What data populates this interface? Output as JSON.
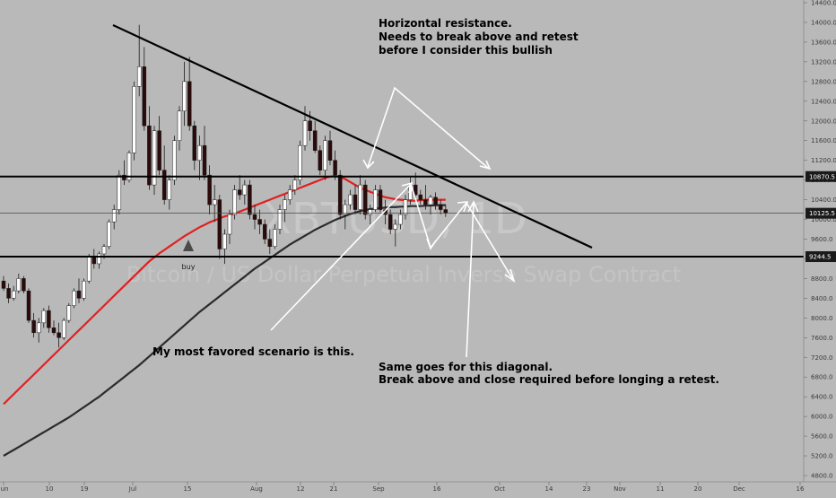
{
  "chart_data": {
    "type": "line",
    "title": "",
    "watermark": {
      "symbol": "XBTUSD, 1D",
      "description": "Bitcoin / US Dollar Perpetual Inverse Swap Contract"
    },
    "timeframe": "1D",
    "y_axis": {
      "ylim": [
        4800,
        14400
      ],
      "ticks": [
        4800,
        5200,
        5600,
        6000,
        6400,
        6800,
        7200,
        7600,
        8000,
        8400,
        8800,
        9200,
        9600,
        10000,
        10400,
        10800,
        11200,
        11600,
        12000,
        12400,
        12800,
        13200,
        13600,
        14000,
        14400
      ],
      "tick_labels": [
        "4800.0",
        "5200.0",
        "5600.0",
        "6000.0",
        "6400.0",
        "6800.0",
        "7200.0",
        "7600.0",
        "8000.0",
        "8400.0",
        "8800.0",
        "9200.0",
        "9600.0",
        "10000.0",
        "10400.0",
        "10800.0",
        "11200.0",
        "11600.0",
        "12000.0",
        "12400.0",
        "12800.0",
        "13200.0",
        "13600.0",
        "14000.0",
        "14400.0"
      ]
    },
    "x_axis": {
      "tick_labels": [
        "Jun",
        "10",
        "19",
        "Jul",
        "15",
        "Aug",
        "12",
        "21",
        "Sep",
        "16",
        "Oct",
        "14",
        "23",
        "Nov",
        "11",
        "20",
        "Dec",
        "16"
      ]
    },
    "price_labels": [
      {
        "value": 10870.5,
        "label": "10870.5",
        "style": "dark"
      },
      {
        "value": 10125.5,
        "label": "10125.5",
        "style": "dark"
      },
      {
        "value": 9244.5,
        "label": "9244.5",
        "style": "dark"
      }
    ],
    "horizontal_lines": [
      10870.5,
      9244.5
    ],
    "last_price": 10125.5,
    "trendline": {
      "from": {
        "date": "Jun 26",
        "price": 13950
      },
      "to": {
        "date": "Oct 30",
        "price": 9450
      }
    },
    "candles": [
      [
        8750,
        8850,
        8550,
        8600
      ],
      [
        8600,
        8700,
        8300,
        8400
      ],
      [
        8400,
        8650,
        8350,
        8550
      ],
      [
        8550,
        8900,
        8500,
        8800
      ],
      [
        8800,
        8850,
        8500,
        8550
      ],
      [
        8550,
        8600,
        7900,
        7950
      ],
      [
        7950,
        8100,
        7600,
        7700
      ],
      [
        7700,
        8000,
        7500,
        7900
      ],
      [
        7900,
        8200,
        7800,
        8150
      ],
      [
        8150,
        8250,
        7700,
        7800
      ],
      [
        7800,
        7950,
        7650,
        7700
      ],
      [
        7700,
        7900,
        7400,
        7600
      ],
      [
        7600,
        8000,
        7550,
        7950
      ],
      [
        7950,
        8300,
        7900,
        8250
      ],
      [
        8250,
        8600,
        8200,
        8550
      ],
      [
        8550,
        8800,
        8300,
        8400
      ],
      [
        8400,
        8800,
        8350,
        8750
      ],
      [
        8750,
        9300,
        8700,
        9250
      ],
      [
        9250,
        9400,
        9000,
        9100
      ],
      [
        9100,
        9350,
        9000,
        9300
      ],
      [
        9300,
        9500,
        9200,
        9450
      ],
      [
        9450,
        10000,
        9400,
        9950
      ],
      [
        9950,
        10300,
        9800,
        10200
      ],
      [
        10200,
        11000,
        10100,
        10900
      ],
      [
        10900,
        11200,
        10700,
        10800
      ],
      [
        10800,
        11400,
        10750,
        11350
      ],
      [
        11350,
        12800,
        11200,
        12700
      ],
      [
        12700,
        13950,
        12500,
        13100
      ],
      [
        13100,
        13500,
        11800,
        11900
      ],
      [
        11900,
        12300,
        10600,
        10700
      ],
      [
        10700,
        11900,
        10500,
        11800
      ],
      [
        11800,
        12100,
        10900,
        11000
      ],
      [
        11000,
        11500,
        10300,
        10400
      ],
      [
        10400,
        10900,
        10200,
        10800
      ],
      [
        10800,
        11700,
        10700,
        11600
      ],
      [
        11600,
        12300,
        11400,
        12200
      ],
      [
        12200,
        13200,
        11900,
        12800
      ],
      [
        12800,
        13300,
        11800,
        11900
      ],
      [
        11900,
        12000,
        11000,
        11200
      ],
      [
        11200,
        11700,
        10800,
        11500
      ],
      [
        11500,
        11900,
        10800,
        10900
      ],
      [
        10900,
        11100,
        10100,
        10300
      ],
      [
        10300,
        10700,
        9950,
        10400
      ],
      [
        10400,
        10500,
        9200,
        9400
      ],
      [
        9400,
        9800,
        9100,
        9700
      ],
      [
        9700,
        10200,
        9500,
        10100
      ],
      [
        10100,
        10700,
        10000,
        10600
      ],
      [
        10600,
        10900,
        10400,
        10500
      ],
      [
        10500,
        10800,
        10300,
        10700
      ],
      [
        10700,
        10800,
        10000,
        10100
      ],
      [
        10100,
        10300,
        9800,
        10000
      ],
      [
        10000,
        10200,
        9700,
        9900
      ],
      [
        9900,
        10000,
        9500,
        9600
      ],
      [
        9600,
        9800,
        9300,
        9450
      ],
      [
        9450,
        9900,
        9400,
        9800
      ],
      [
        9800,
        10300,
        9700,
        10200
      ],
      [
        10200,
        10500,
        9950,
        10400
      ],
      [
        10400,
        10700,
        10300,
        10600
      ],
      [
        10600,
        10900,
        10500,
        10800
      ],
      [
        10800,
        11600,
        10700,
        11500
      ],
      [
        11500,
        12300,
        11400,
        12000
      ],
      [
        12000,
        12200,
        11600,
        11800
      ],
      [
        11800,
        12000,
        11350,
        11400
      ],
      [
        11400,
        11500,
        10900,
        11000
      ],
      [
        11000,
        11700,
        10800,
        11600
      ],
      [
        11600,
        11800,
        11100,
        11200
      ],
      [
        11200,
        11400,
        10800,
        10900
      ],
      [
        10900,
        11000,
        10000,
        10100
      ],
      [
        10100,
        10400,
        9800,
        10300
      ],
      [
        10300,
        10600,
        10200,
        10500
      ],
      [
        10500,
        10700,
        10100,
        10200
      ],
      [
        10200,
        10900,
        10100,
        10700
      ],
      [
        10700,
        10800,
        10000,
        10100
      ],
      [
        10100,
        10300,
        9900,
        10200
      ],
      [
        10200,
        10700,
        10150,
        10600
      ],
      [
        10600,
        10700,
        10150,
        10200
      ],
      [
        10200,
        10400,
        9900,
        10100
      ],
      [
        10100,
        10200,
        9700,
        9800
      ],
      [
        9800,
        10000,
        9450,
        9900
      ],
      [
        9900,
        10200,
        9800,
        10100
      ],
      [
        10100,
        10500,
        10000,
        10400
      ],
      [
        10400,
        10850,
        10300,
        10700
      ],
      [
        10700,
        10950,
        10400,
        10500
      ],
      [
        10500,
        10600,
        10300,
        10400
      ],
      [
        10400,
        10700,
        10200,
        10300
      ],
      [
        10300,
        10500,
        10100,
        10450
      ],
      [
        10450,
        10550,
        10200,
        10300
      ],
      [
        10300,
        10400,
        10100,
        10200
      ],
      [
        10200,
        10300,
        10050,
        10125.5
      ]
    ],
    "series": [
      {
        "name": "",
        "color": "#e02020",
        "values": [
          6250,
          6350,
          6450,
          6550,
          6650,
          6750,
          6850,
          6950,
          7050,
          7150,
          7250,
          7350,
          7450,
          7550,
          7650,
          7750,
          7850,
          7950,
          8050,
          8150,
          8250,
          8350,
          8450,
          8550,
          8650,
          8750,
          8850,
          8950,
          9050,
          9150,
          9230,
          9310,
          9380,
          9450,
          9520,
          9590,
          9660,
          9720,
          9780,
          9840,
          9890,
          9940,
          9980,
          10020,
          10060,
          10090,
          10120,
          10160,
          10200,
          10240,
          10280,
          10320,
          10360,
          10400,
          10440,
          10480,
          10520,
          10560,
          10600,
          10640,
          10680,
          10720,
          10760,
          10800,
          10840,
          10870,
          10880,
          10860,
          10820,
          10760,
          10700,
          10640,
          10600,
          10560,
          10520,
          10480,
          10450,
          10430,
          10410,
          10400,
          10390,
          10380,
          10380,
          10390,
          10400,
          10400,
          10400,
          10400,
          10400
        ]
      },
      {
        "name": "",
        "color": "#2b2b2b",
        "values": [
          5200,
          5260,
          5320,
          5380,
          5440,
          5500,
          5560,
          5620,
          5680,
          5740,
          5800,
          5860,
          5920,
          5980,
          6050,
          6120,
          6190,
          6260,
          6330,
          6400,
          6480,
          6560,
          6640,
          6720,
          6800,
          6880,
          6960,
          7040,
          7130,
          7220,
          7310,
          7400,
          7490,
          7580,
          7670,
          7760,
          7850,
          7940,
          8030,
          8120,
          8200,
          8280,
          8360,
          8440,
          8520,
          8600,
          8680,
          8760,
          8840,
          8920,
          9000,
          9070,
          9140,
          9210,
          9280,
          9350,
          9420,
          9490,
          9550,
          9610,
          9670,
          9730,
          9790,
          9840,
          9890,
          9940,
          9990,
          10030,
          10070,
          10110,
          10140,
          10170,
          10190,
          10210,
          10220,
          10230,
          10240,
          10250,
          10250,
          10260,
          10260,
          10270,
          10270,
          10270,
          10280,
          10280,
          10290,
          10290,
          10290
        ]
      }
    ],
    "markers": [
      {
        "label": "buy",
        "candle_index": 43
      }
    ],
    "annotations": [
      {
        "lines": [
          "Horizontal resistance.",
          "Needs to break above and retest",
          "before I consider this bullish"
        ]
      },
      {
        "lines": [
          "My most favored scenario is this."
        ]
      },
      {
        "lines": [
          "Same goes for this diagonal.",
          "Break above and close required before longing a retest."
        ]
      }
    ],
    "colors": {
      "background": "#b9b9b9",
      "bull": "#ffffff",
      "bear": "#2a0a0a",
      "arrows": "#ffffff",
      "lines": "#000000"
    }
  }
}
